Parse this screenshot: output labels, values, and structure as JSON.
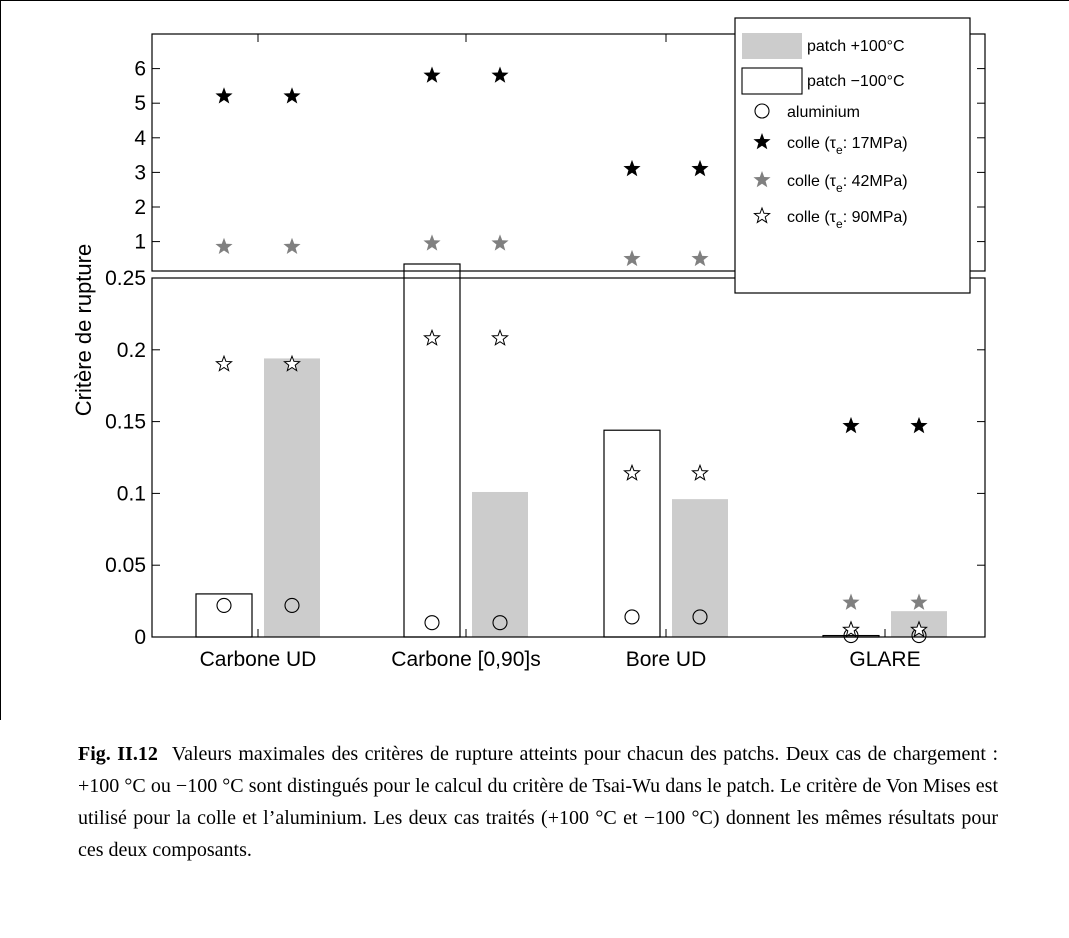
{
  "chart_data": {
    "type": "bar",
    "ylabel": "Critère de rupture",
    "categories": [
      "Carbone UD",
      "Carbone [0,90]s",
      "Bore UD",
      "GLARE"
    ],
    "axis_break": true,
    "lower_axis": {
      "ylim": [
        0,
        0.25
      ],
      "ticks": [
        "0",
        "0.05",
        "0.1",
        "0.15",
        "0.2",
        "0.25"
      ]
    },
    "upper_axis": {
      "ylim": [
        0.15,
        7
      ],
      "ticks": [
        "1",
        "2",
        "3",
        "4",
        "5",
        "6"
      ]
    },
    "grid": false,
    "legend_position": "top-right",
    "series": [
      {
        "name": "patch +100°C",
        "kind": "bar",
        "color": "#cccccc",
        "values": [
          0.194,
          0.101,
          0.096,
          0.018
        ]
      },
      {
        "name": "patch −100°C",
        "kind": "bar",
        "color": "#ffffff",
        "values": [
          0.03,
          0.26,
          0.144,
          0.001
        ]
      },
      {
        "name": "aluminium",
        "kind": "marker-circle",
        "points": [
          {
            "category": 0,
            "pair": 0,
            "value": 0.022
          },
          {
            "category": 0,
            "pair": 1,
            "value": 0.022
          },
          {
            "category": 1,
            "pair": 0,
            "value": 0.01
          },
          {
            "category": 1,
            "pair": 1,
            "value": 0.01
          },
          {
            "category": 2,
            "pair": 0,
            "value": 0.014
          },
          {
            "category": 2,
            "pair": 1,
            "value": 0.014
          },
          {
            "category": 3,
            "pair": 0,
            "value": 0.001
          },
          {
            "category": 3,
            "pair": 1,
            "value": 0.001
          }
        ]
      },
      {
        "name": "colle (τe: 17MPa)",
        "name_parts": [
          "colle (τ",
          "e",
          ": 17MPa)"
        ],
        "kind": "marker-star-black",
        "points": [
          {
            "category": 0,
            "pair": 0,
            "value": 5.2
          },
          {
            "category": 0,
            "pair": 1,
            "value": 5.2
          },
          {
            "category": 1,
            "pair": 0,
            "value": 5.8
          },
          {
            "category": 1,
            "pair": 1,
            "value": 5.8
          },
          {
            "category": 2,
            "pair": 0,
            "value": 3.1
          },
          {
            "category": 2,
            "pair": 1,
            "value": 3.1
          },
          {
            "category": 3,
            "pair": 0,
            "value": 0.147
          },
          {
            "category": 3,
            "pair": 1,
            "value": 0.147
          }
        ]
      },
      {
        "name": "colle (τe: 42MPa)",
        "name_parts": [
          "colle (τ",
          "e",
          ": 42MPa)"
        ],
        "kind": "marker-star-gray",
        "points": [
          {
            "category": 0,
            "pair": 0,
            "value": 0.85
          },
          {
            "category": 0,
            "pair": 1,
            "value": 0.85
          },
          {
            "category": 1,
            "pair": 0,
            "value": 0.95
          },
          {
            "category": 1,
            "pair": 1,
            "value": 0.95
          },
          {
            "category": 2,
            "pair": 0,
            "value": 0.5
          },
          {
            "category": 2,
            "pair": 1,
            "value": 0.5
          },
          {
            "category": 3,
            "pair": 0,
            "value": 0.024
          },
          {
            "category": 3,
            "pair": 1,
            "value": 0.024
          }
        ]
      },
      {
        "name": "colle (τe: 90MPa)",
        "name_parts": [
          "colle (τ",
          "e",
          ": 90MPa)"
        ],
        "kind": "marker-star-open",
        "points": [
          {
            "category": 0,
            "pair": 0,
            "value": 0.19
          },
          {
            "category": 0,
            "pair": 1,
            "value": 0.19
          },
          {
            "category": 1,
            "pair": 0,
            "value": 0.208
          },
          {
            "category": 1,
            "pair": 1,
            "value": 0.208
          },
          {
            "category": 2,
            "pair": 0,
            "value": 0.114
          },
          {
            "category": 2,
            "pair": 1,
            "value": 0.114
          },
          {
            "category": 3,
            "pair": 0,
            "value": 0.005
          },
          {
            "category": 3,
            "pair": 1,
            "value": 0.005
          }
        ]
      }
    ],
    "bars": [
      {
        "category": 0,
        "pair": 0,
        "series": "patch −100°C",
        "value": 0.03
      },
      {
        "category": 0,
        "pair": 1,
        "series": "patch +100°C",
        "value": 0.194
      },
      {
        "category": 1,
        "pair": 0,
        "series": "patch −100°C",
        "value": 0.26
      },
      {
        "category": 1,
        "pair": 1,
        "series": "patch +100°C",
        "value": 0.101
      },
      {
        "category": 2,
        "pair": 0,
        "series": "patch −100°C",
        "value": 0.144
      },
      {
        "category": 2,
        "pair": 1,
        "series": "patch +100°C",
        "value": 0.096
      },
      {
        "category": 3,
        "pair": 0,
        "series": "patch −100°C",
        "value": 0.001
      },
      {
        "category": 3,
        "pair": 1,
        "series": "patch +100°C",
        "value": 0.018
      }
    ]
  },
  "caption": {
    "label": "Fig. II.12",
    "text": "Valeurs maximales des critères de rupture atteints pour chacun des patchs. Deux cas de chargement : +100 °C ou −100 °C sont distingués pour le calcul du critère de Tsai-Wu dans le patch. Le critère de Von Mises est utilisé pour la colle et l’aluminium. Les deux cas traités (+100 °C et −100 °C) donnent les mêmes résultats pour ces deux composants."
  }
}
